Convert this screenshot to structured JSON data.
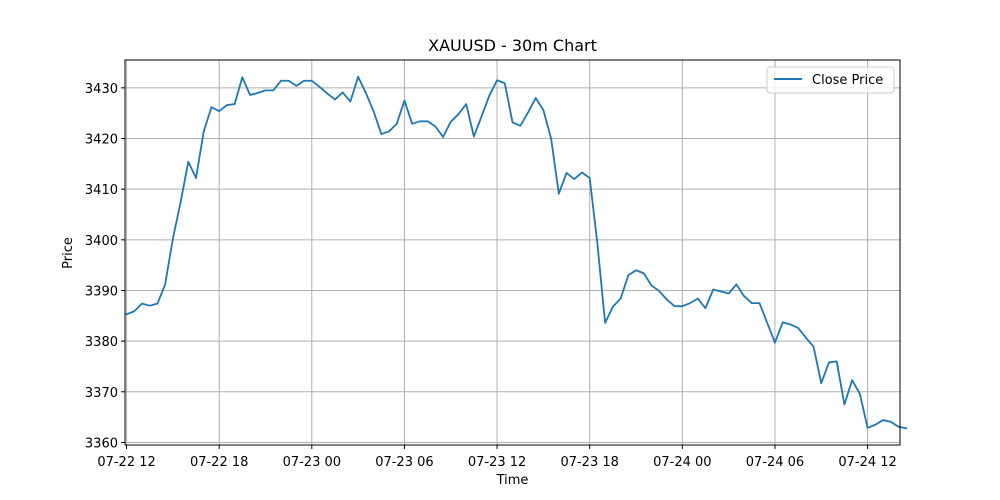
{
  "chart_data": {
    "type": "line",
    "title": "XAUUSD - 30m Chart",
    "xlabel": "Time",
    "ylabel": "Price",
    "xlim": [
      -0.1,
      50.1
    ],
    "ylim": [
      3359.5,
      3435.5
    ],
    "grid": true,
    "legend_position": "upper right",
    "x_ticks": [
      {
        "value": 0,
        "label": "07-22 12"
      },
      {
        "value": 6,
        "label": "07-22 18"
      },
      {
        "value": 12,
        "label": "07-23 00"
      },
      {
        "value": 18,
        "label": "07-23 06"
      },
      {
        "value": 24,
        "label": "07-23 12"
      },
      {
        "value": 30,
        "label": "07-23 18"
      },
      {
        "value": 36,
        "label": "07-24 00"
      },
      {
        "value": 42,
        "label": "07-24 06"
      },
      {
        "value": 48,
        "label": "07-24 12"
      }
    ],
    "y_ticks": [
      {
        "value": 3360,
        "label": "3360"
      },
      {
        "value": 3370,
        "label": "3370"
      },
      {
        "value": 3380,
        "label": "3380"
      },
      {
        "value": 3390,
        "label": "3390"
      },
      {
        "value": 3400,
        "label": "3400"
      },
      {
        "value": 3410,
        "label": "3410"
      },
      {
        "value": 3420,
        "label": "3420"
      },
      {
        "value": 3430,
        "label": "3430"
      }
    ],
    "series": [
      {
        "name": "Close Price",
        "color": "#1f77b4",
        "points": [
          [
            0.0,
            3385.3
          ],
          [
            0.5,
            3385.9
          ],
          [
            1.0,
            3387.4
          ],
          [
            1.5,
            3387.0
          ],
          [
            2.0,
            3387.4
          ],
          [
            2.5,
            3391.2
          ],
          [
            3.0,
            3400.2
          ],
          [
            3.5,
            3407.4
          ],
          [
            4.0,
            3415.4
          ],
          [
            4.5,
            3412.2
          ],
          [
            5.0,
            3421.4
          ],
          [
            5.5,
            3426.2
          ],
          [
            6.0,
            3425.4
          ],
          [
            6.5,
            3426.6
          ],
          [
            7.0,
            3426.8
          ],
          [
            7.5,
            3432.1
          ],
          [
            8.0,
            3428.6
          ],
          [
            8.5,
            3429.0
          ],
          [
            9.0,
            3429.5
          ],
          [
            9.5,
            3429.5
          ],
          [
            10.0,
            3431.4
          ],
          [
            10.5,
            3431.4
          ],
          [
            11.0,
            3430.4
          ],
          [
            11.5,
            3431.4
          ],
          [
            12.0,
            3431.4
          ],
          [
            12.5,
            3430.2
          ],
          [
            13.0,
            3428.9
          ],
          [
            13.5,
            3427.7
          ],
          [
            14.0,
            3429.1
          ],
          [
            14.5,
            3427.3
          ],
          [
            15.0,
            3432.2
          ],
          [
            15.5,
            3429.0
          ],
          [
            16.0,
            3425.4
          ],
          [
            16.5,
            3420.9
          ],
          [
            17.0,
            3421.4
          ],
          [
            17.5,
            3422.9
          ],
          [
            18.0,
            3427.5
          ],
          [
            18.5,
            3422.9
          ],
          [
            19.0,
            3423.4
          ],
          [
            19.5,
            3423.4
          ],
          [
            20.0,
            3422.4
          ],
          [
            20.5,
            3420.3
          ],
          [
            21.0,
            3423.3
          ],
          [
            21.5,
            3424.8
          ],
          [
            22.0,
            3426.8
          ],
          [
            22.5,
            3420.4
          ],
          [
            23.0,
            3424.4
          ],
          [
            23.5,
            3428.5
          ],
          [
            24.0,
            3431.5
          ],
          [
            24.5,
            3430.9
          ],
          [
            25.0,
            3423.2
          ],
          [
            25.5,
            3422.5
          ],
          [
            26.0,
            3425.1
          ],
          [
            26.5,
            3428.0
          ],
          [
            27.0,
            3425.6
          ],
          [
            27.5,
            3420.0
          ],
          [
            28.0,
            3409.1
          ],
          [
            28.5,
            3413.2
          ],
          [
            29.0,
            3412.0
          ],
          [
            29.5,
            3413.3
          ],
          [
            30.0,
            3412.2
          ],
          [
            30.5,
            3399.2
          ],
          [
            31.0,
            3383.6
          ],
          [
            31.5,
            3386.8
          ],
          [
            32.0,
            3388.4
          ],
          [
            32.5,
            3393.0
          ],
          [
            33.0,
            3394.0
          ],
          [
            33.5,
            3393.4
          ],
          [
            34.0,
            3391.0
          ],
          [
            34.5,
            3389.9
          ],
          [
            35.0,
            3388.2
          ],
          [
            35.5,
            3386.9
          ],
          [
            36.0,
            3386.9
          ],
          [
            36.5,
            3387.5
          ],
          [
            37.0,
            3388.4
          ],
          [
            37.5,
            3386.5
          ],
          [
            38.0,
            3390.2
          ],
          [
            38.5,
            3389.8
          ],
          [
            39.0,
            3389.4
          ],
          [
            39.5,
            3391.2
          ],
          [
            40.0,
            3388.9
          ],
          [
            40.5,
            3387.5
          ],
          [
            41.0,
            3387.5
          ],
          [
            41.5,
            3383.6
          ],
          [
            42.0,
            3379.7
          ],
          [
            42.5,
            3383.7
          ],
          [
            43.0,
            3383.3
          ],
          [
            43.5,
            3382.6
          ],
          [
            44.0,
            3380.7
          ],
          [
            44.5,
            3378.9
          ],
          [
            45.0,
            3371.7
          ],
          [
            45.5,
            3375.8
          ],
          [
            46.0,
            3376.0
          ],
          [
            46.5,
            3367.5
          ],
          [
            47.0,
            3372.3
          ],
          [
            47.5,
            3369.6
          ],
          [
            48.0,
            3362.9
          ],
          [
            48.5,
            3363.5
          ],
          [
            49.0,
            3364.4
          ],
          [
            49.5,
            3364.1
          ],
          [
            50.0,
            3363.1
          ],
          [
            50.5,
            3362.8
          ]
        ]
      }
    ]
  }
}
